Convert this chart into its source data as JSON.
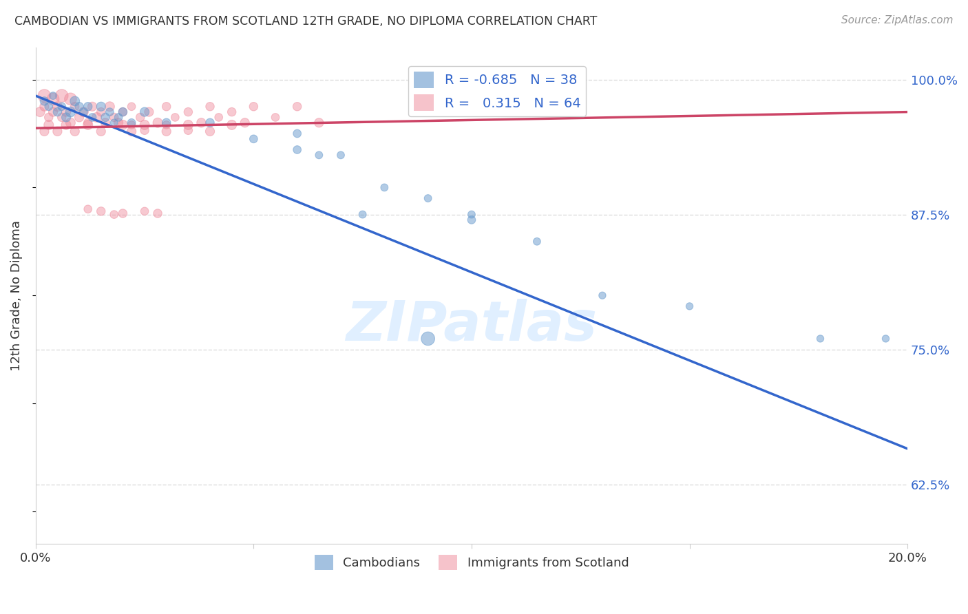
{
  "title": "CAMBODIAN VS IMMIGRANTS FROM SCOTLAND 12TH GRADE, NO DIPLOMA CORRELATION CHART",
  "source": "Source: ZipAtlas.com",
  "xlabel_cambodian": "Cambodians",
  "xlabel_scotland": "Immigrants from Scotland",
  "ylabel": "12th Grade, No Diploma",
  "xlim": [
    0.0,
    0.2
  ],
  "ylim": [
    0.57,
    1.03
  ],
  "xtick_positions": [
    0.0,
    0.05,
    0.1,
    0.15,
    0.2
  ],
  "xticklabels": [
    "0.0%",
    "",
    "",
    "",
    "20.0%"
  ],
  "yticks_right": [
    0.625,
    0.75,
    0.875,
    1.0
  ],
  "ytick_labels_right": [
    "62.5%",
    "75.0%",
    "87.5%",
    "100.0%"
  ],
  "grid_color": "#dddddd",
  "blue_color": "#6699cc",
  "pink_color": "#ee8899",
  "blue_line_color": "#3366cc",
  "pink_line_color": "#cc4466",
  "R_blue": -0.685,
  "N_blue": 38,
  "R_pink": 0.315,
  "N_pink": 64,
  "watermark": "ZIPatlas",
  "blue_line_x0": 0.0,
  "blue_line_y0": 0.985,
  "blue_line_x1": 0.2,
  "blue_line_y1": 0.658,
  "pink_line_x0": 0.0,
  "pink_line_y0": 0.955,
  "pink_line_x1": 0.2,
  "pink_line_y1": 0.97,
  "cambodian_x": [
    0.002,
    0.003,
    0.004,
    0.005,
    0.006,
    0.007,
    0.008,
    0.009,
    0.01,
    0.011,
    0.012,
    0.013,
    0.015,
    0.016,
    0.017,
    0.018,
    0.019,
    0.02,
    0.022,
    0.025,
    0.03,
    0.04,
    0.05,
    0.06,
    0.065,
    0.07,
    0.08,
    0.09,
    0.1,
    0.115,
    0.15,
    0.18,
    0.195,
    0.06,
    0.075,
    0.1,
    0.13,
    0.09
  ],
  "cambodian_y": [
    0.98,
    0.975,
    0.985,
    0.97,
    0.975,
    0.965,
    0.97,
    0.98,
    0.975,
    0.97,
    0.975,
    0.965,
    0.975,
    0.965,
    0.97,
    0.96,
    0.965,
    0.97,
    0.96,
    0.97,
    0.96,
    0.96,
    0.945,
    0.935,
    0.93,
    0.93,
    0.9,
    0.89,
    0.87,
    0.85,
    0.79,
    0.76,
    0.76,
    0.95,
    0.875,
    0.875,
    0.8,
    0.76
  ],
  "cambodian_sizes": [
    80,
    70,
    60,
    80,
    70,
    90,
    110,
    100,
    80,
    70,
    80,
    70,
    90,
    80,
    70,
    60,
    70,
    80,
    70,
    90,
    80,
    80,
    70,
    70,
    60,
    60,
    60,
    60,
    70,
    60,
    55,
    55,
    55,
    70,
    60,
    60,
    55,
    200
  ],
  "scotland_x": [
    0.001,
    0.002,
    0.003,
    0.004,
    0.005,
    0.006,
    0.007,
    0.008,
    0.009,
    0.01,
    0.011,
    0.012,
    0.013,
    0.014,
    0.015,
    0.016,
    0.017,
    0.018,
    0.019,
    0.02,
    0.022,
    0.024,
    0.026,
    0.028,
    0.03,
    0.032,
    0.035,
    0.038,
    0.04,
    0.042,
    0.045,
    0.048,
    0.05,
    0.055,
    0.06,
    0.065,
    0.022,
    0.025,
    0.03,
    0.035,
    0.012,
    0.015,
    0.018,
    0.02,
    0.025,
    0.028,
    0.002,
    0.003,
    0.005,
    0.007,
    0.009,
    0.012,
    0.015,
    0.02,
    0.022,
    0.025,
    0.03,
    0.035,
    0.04,
    0.045,
    0.002,
    0.004,
    0.006,
    0.008
  ],
  "scotland_y": [
    0.97,
    0.975,
    0.965,
    0.97,
    0.975,
    0.965,
    0.97,
    0.96,
    0.975,
    0.965,
    0.97,
    0.96,
    0.975,
    0.965,
    0.97,
    0.96,
    0.975,
    0.965,
    0.96,
    0.97,
    0.975,
    0.965,
    0.97,
    0.96,
    0.975,
    0.965,
    0.97,
    0.96,
    0.975,
    0.965,
    0.97,
    0.96,
    0.975,
    0.965,
    0.975,
    0.96,
    0.958,
    0.953,
    0.958,
    0.953,
    0.88,
    0.878,
    0.875,
    0.876,
    0.878,
    0.876,
    0.952,
    0.958,
    0.952,
    0.958,
    0.952,
    0.958,
    0.952,
    0.958,
    0.952,
    0.958,
    0.952,
    0.958,
    0.952,
    0.958,
    0.985,
    0.982,
    0.985,
    0.982
  ],
  "scotland_sizes": [
    100,
    90,
    80,
    90,
    100,
    80,
    90,
    100,
    80,
    90,
    100,
    80,
    90,
    100,
    80,
    90,
    100,
    80,
    90,
    80,
    70,
    80,
    90,
    100,
    80,
    70,
    80,
    90,
    80,
    70,
    80,
    90,
    80,
    70,
    80,
    90,
    70,
    80,
    70,
    80,
    70,
    80,
    70,
    80,
    70,
    80,
    90,
    100,
    90,
    100,
    90,
    100,
    90,
    100,
    90,
    100,
    90,
    100,
    90,
    100,
    180,
    160,
    180,
    160
  ]
}
